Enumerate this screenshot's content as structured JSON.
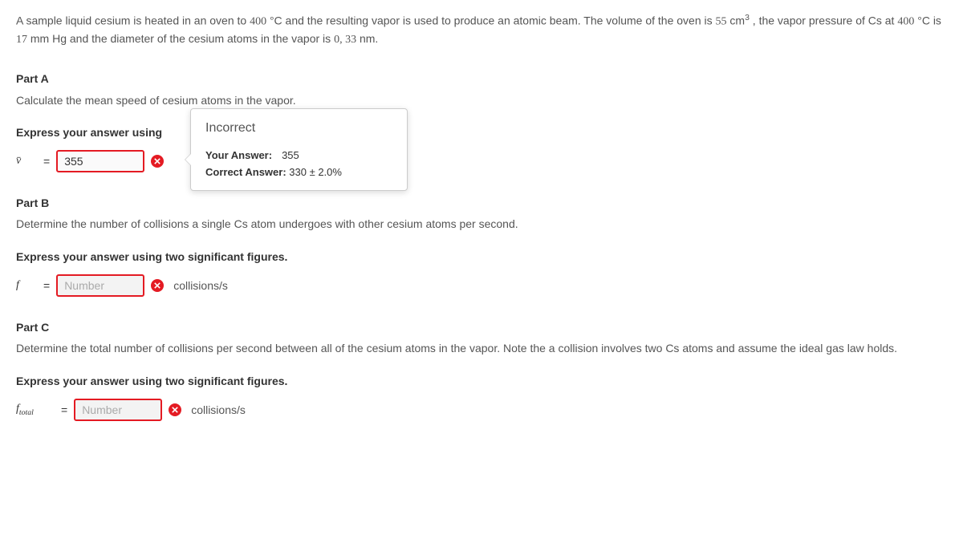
{
  "problem_text_html": "A sample liquid cesium is heated in an oven to <span class='nm'>400</span> °C and the resulting vapor is used to produce an atomic beam. The volume of the oven is <span class='nm'>55</span> cm<sup>3</sup> , the vapor pressure of Cs at <span class='nm'>400</span> °C is <span class='nm'>17</span> mm Hg and the diameter of the cesium atoms in the vapor is <span class='nm'>0, 33</span> nm.",
  "partA": {
    "heading": "Part A",
    "prompt": "Calculate the mean speed of cesium atoms in the vapor.",
    "instruct": "Express your answer using",
    "var_html": "v&#772;",
    "eq": "=",
    "value": "355",
    "feedback": {
      "title": "Incorrect",
      "your_label": "Your Answer:",
      "your_val": "355",
      "correct_label": "Correct Answer:",
      "correct_val": "330 ± 2.0%"
    }
  },
  "partB": {
    "heading": "Part B",
    "prompt": "Determine the number of collisions a single Cs atom undergoes with other cesium atoms per second.",
    "instruct": "Express your answer using two significant figures.",
    "var_html": "f",
    "eq": "=",
    "placeholder": "Number",
    "unit": "collisions/s"
  },
  "partC": {
    "heading": "Part C",
    "prompt": "Determine the total number of collisions per second between all of the cesium atoms in the vapor. Note the a collision involves two Cs atoms and assume the ideal gas law holds.",
    "instruct": "Express your answer using two significant figures.",
    "var_html": "f<sub>total</sub>",
    "eq": "=",
    "placeholder": "Number",
    "unit": "collisions/s"
  }
}
